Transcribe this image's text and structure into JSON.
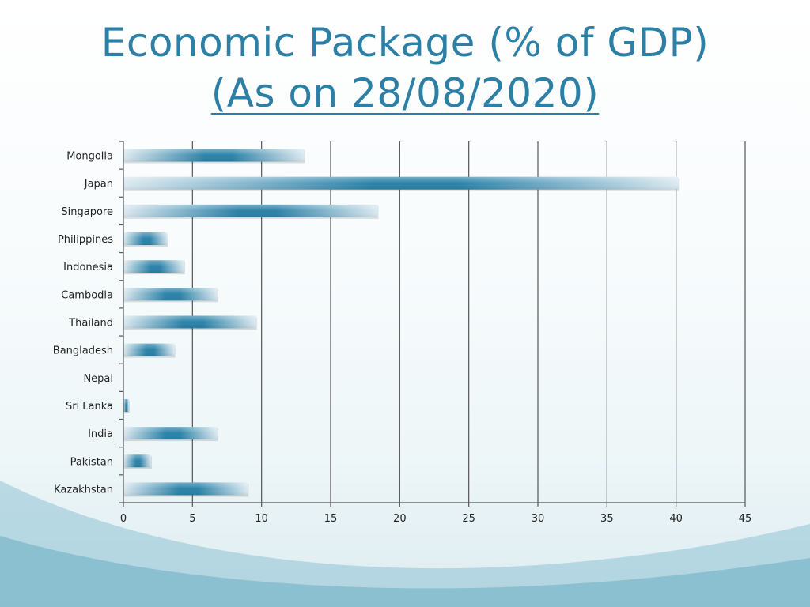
{
  "slide": {
    "title_line1": "Economic Package (% of GDP)",
    "title_line2": "(As on 28/08/2020)"
  },
  "colors": {
    "title": "#2c7fa5",
    "bar_dark": "#2b82a8",
    "bar_light": "#dce9f0",
    "gridline": "#555555",
    "wave": "#6fb0c4"
  },
  "chart_data": {
    "type": "bar",
    "orientation": "horizontal",
    "categories": [
      "Mongolia",
      "Japan",
      "Singapore",
      "Philippines",
      "Indonesia",
      "Cambodia",
      "Thailand",
      "Bangladesh",
      "Nepal",
      "Sri Lanka",
      "India",
      "Pakistan",
      "Kazakhstan"
    ],
    "values": [
      13.1,
      40.2,
      18.4,
      3.2,
      4.4,
      6.8,
      9.6,
      3.7,
      0,
      0.4,
      6.8,
      2.0,
      9.0
    ],
    "xlim": [
      0,
      45
    ],
    "xticks": [
      "0",
      "5",
      "10",
      "15",
      "20",
      "25",
      "30",
      "35",
      "40",
      "45"
    ],
    "grid": true,
    "legend": "none"
  }
}
